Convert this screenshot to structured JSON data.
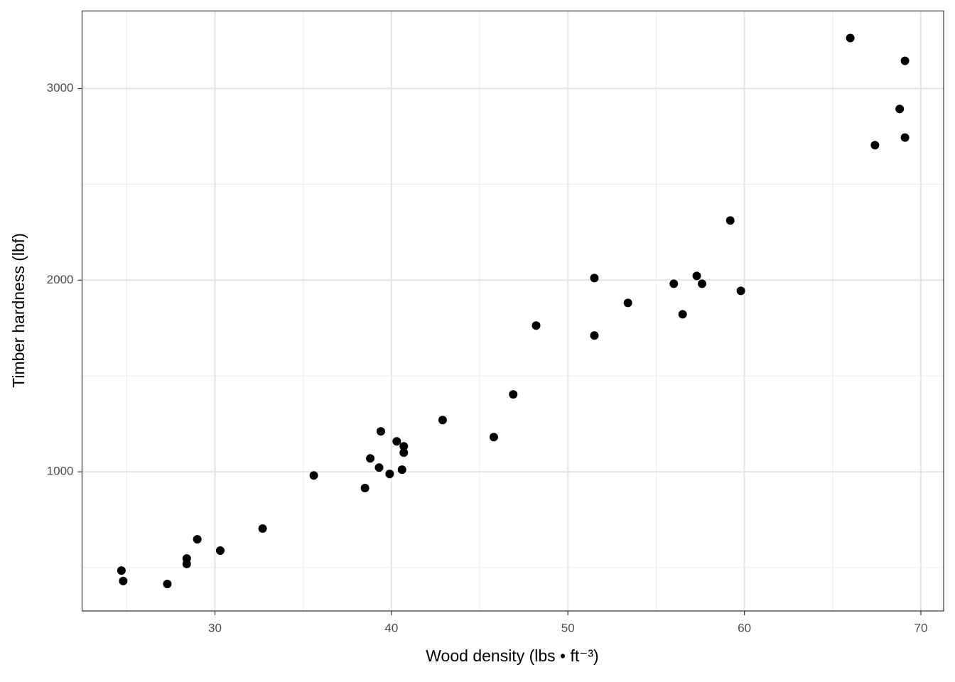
{
  "chart_data": {
    "type": "scatter",
    "xlabel": "Wood density (lbs • ft⁻³)",
    "ylabel": "Timber hardness (lbf)",
    "x": [
      24.7,
      24.8,
      27.3,
      28.4,
      28.4,
      29.0,
      30.3,
      32.7,
      35.6,
      38.5,
      38.8,
      39.3,
      39.4,
      39.9,
      40.3,
      40.6,
      40.7,
      40.7,
      42.9,
      45.8,
      46.9,
      48.2,
      51.5,
      51.5,
      53.4,
      56.0,
      56.5,
      57.3,
      57.6,
      59.2,
      59.8,
      66.0,
      67.4,
      68.8,
      69.1,
      69.1
    ],
    "values": [
      485,
      430,
      415,
      548,
      519,
      648,
      589,
      704,
      981,
      915,
      1070,
      1022,
      1211,
      989,
      1159,
      1011,
      1133,
      1100,
      1270,
      1181,
      1404,
      1763,
      2011,
      1711,
      1881,
      1981,
      1822,
      2022,
      1981,
      2311,
      1944,
      3263,
      2704,
      2893,
      3144,
      2744
    ],
    "color": "#000000",
    "xlim": [
      22.47,
      71.29
    ],
    "ylim": [
      274,
      3404
    ],
    "xticks": [
      30,
      40,
      50,
      60,
      70
    ],
    "yticks": [
      1000,
      2000,
      3000
    ],
    "x_minor_grid": [
      25,
      35,
      45,
      55,
      65
    ],
    "y_minor_grid": [
      500,
      1500,
      2500
    ],
    "grid": true
  }
}
